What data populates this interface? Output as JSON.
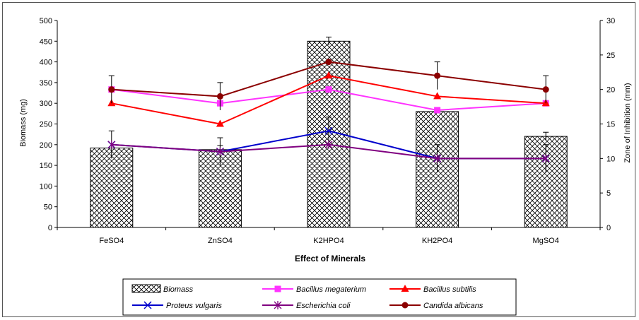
{
  "chart_data": {
    "type": "bar",
    "categories": [
      "FeSO4",
      "ZnSO4",
      "K2HPO4",
      "KH2PO4",
      "MgSO4"
    ],
    "xlabel": "Effect of Minerals",
    "ylabel": "Biomass (mg)",
    "y2label": "Zone of Inhibition (mm)",
    "ylim": [
      0,
      500
    ],
    "y2lim": [
      0,
      30
    ],
    "yticks": [
      0,
      50,
      100,
      150,
      200,
      250,
      300,
      350,
      400,
      450,
      500
    ],
    "y2ticks": [
      0,
      5,
      10,
      15,
      20,
      25,
      30
    ],
    "grid": false,
    "legend_position": "bottom",
    "bar_series": {
      "name": "Biomass",
      "values": [
        192,
        188,
        450,
        280,
        220
      ],
      "errors": [
        0,
        10,
        10,
        0,
        10
      ],
      "pattern": "crosshatch"
    },
    "series": [
      {
        "name": "Bacillus megaterium",
        "axis": "right",
        "color": "#ff33ff",
        "marker": "square",
        "values": [
          20,
          18,
          20,
          17,
          18
        ],
        "errors": [
          0,
          0,
          0,
          0,
          0
        ]
      },
      {
        "name": "Bacillus subtilis",
        "axis": "right",
        "color": "#ff0000",
        "marker": "triangle",
        "values": [
          18,
          15,
          22,
          19,
          18
        ],
        "errors": [
          0,
          0,
          0,
          0,
          0
        ]
      },
      {
        "name": "Proteus vulgaris",
        "axis": "right",
        "color": "#0000cc",
        "marker": "x",
        "values": [
          12,
          11,
          14,
          10,
          10
        ],
        "errors": [
          2,
          2,
          2,
          2,
          2
        ]
      },
      {
        "name": "Escherichia coli",
        "axis": "right",
        "color": "#800080",
        "marker": "star",
        "values": [
          12,
          11,
          12,
          10,
          10
        ],
        "errors": [
          0,
          0,
          0,
          0,
          0
        ]
      },
      {
        "name": "Candida albicans",
        "axis": "right",
        "color": "#8b0000",
        "marker": "circle",
        "values": [
          20,
          19,
          24,
          22,
          20
        ],
        "errors": [
          2,
          2,
          0,
          2,
          2
        ]
      }
    ]
  }
}
